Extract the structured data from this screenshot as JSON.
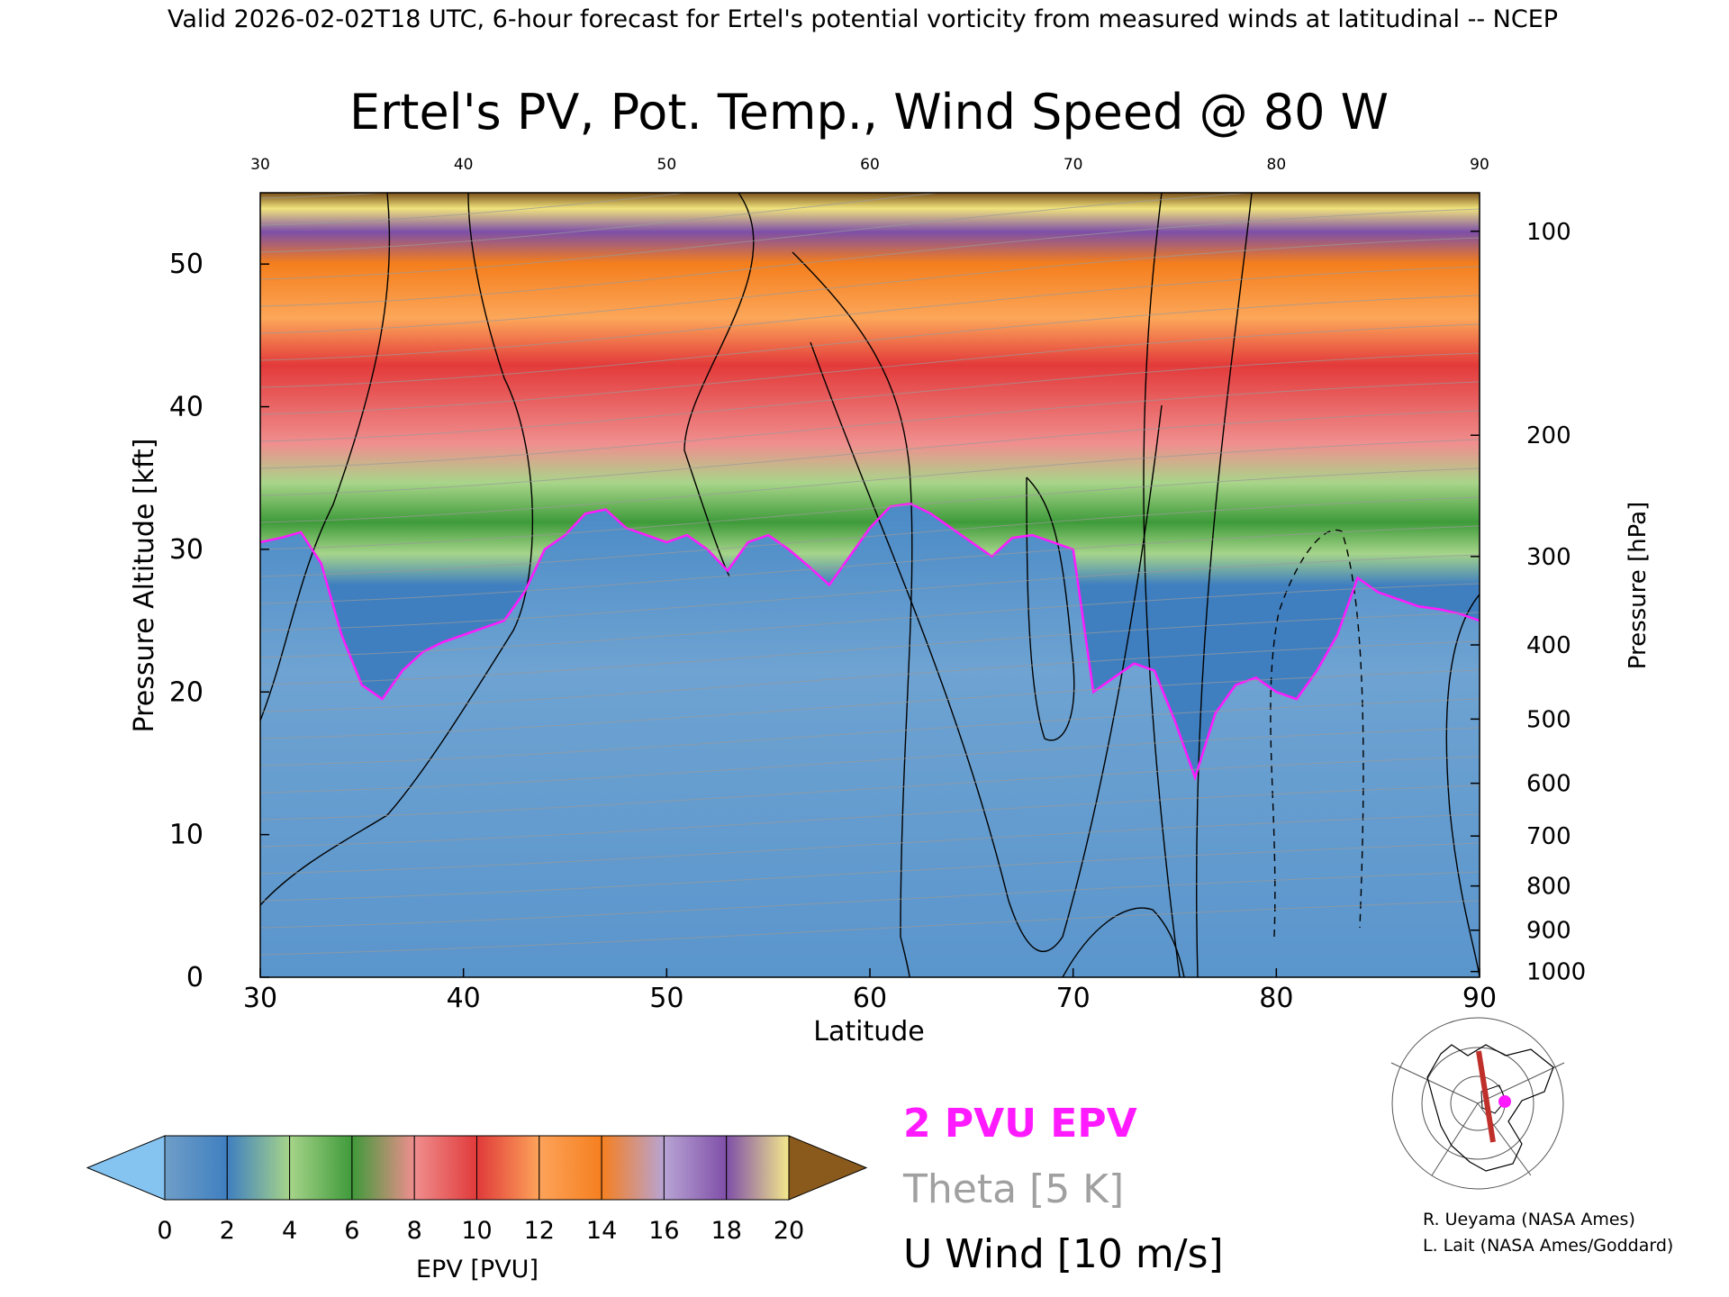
{
  "header": {
    "valid_line": "Valid 2026-02-02T18 UTC, 6-hour forecast for Ertel's potential vorticity from measured winds at latitudinal -- NCEP"
  },
  "chart_data": {
    "type": "heatmap",
    "title": "Ertel's PV, Pot. Temp., Wind Speed @ 80 W",
    "xlabel": "Latitude",
    "ylabel_left": "Pressure Altitude [kft]",
    "ylabel_right": "Pressure [hPa]",
    "xlim": [
      30,
      90
    ],
    "ylim": [
      0,
      55
    ],
    "x_ticks": [
      "30",
      "40",
      "50",
      "60",
      "70",
      "80",
      "90"
    ],
    "x_ticks_top": [
      "30",
      "40",
      "50",
      "60",
      "70",
      "80",
      "90"
    ],
    "y_ticks": [
      "0",
      "10",
      "20",
      "30",
      "40",
      "50"
    ],
    "pressure_ticks": [
      {
        "label": "100",
        "alt": 52.3
      },
      {
        "label": "200",
        "alt": 38.0
      },
      {
        "label": "300",
        "alt": 29.5
      },
      {
        "label": "400",
        "alt": 23.3
      },
      {
        "label": "500",
        "alt": 18.1
      },
      {
        "label": "600",
        "alt": 13.6
      },
      {
        "label": "700",
        "alt": 9.9
      },
      {
        "label": "800",
        "alt": 6.4
      },
      {
        "label": "900",
        "alt": 3.3
      },
      {
        "label": "1000",
        "alt": 0.4
      }
    ],
    "two_pvu_boundary": {
      "lat": [
        30,
        31,
        32,
        33,
        34,
        35,
        36,
        37,
        38,
        39,
        40,
        41,
        42,
        43,
        44,
        45,
        46,
        47,
        48,
        49,
        50,
        51,
        52,
        53,
        54,
        55,
        56,
        57,
        58,
        59,
        60,
        61,
        62,
        63,
        64,
        65,
        66,
        67,
        68,
        69,
        70,
        71,
        72,
        73,
        74,
        75,
        76,
        77,
        78,
        79,
        80,
        81,
        82,
        83,
        84,
        85,
        86,
        87,
        88,
        89,
        90
      ],
      "alt_kft": [
        30.5,
        30.8,
        31.2,
        29.0,
        24.0,
        20.5,
        19.5,
        21.5,
        22.8,
        23.5,
        24.0,
        24.5,
        25.0,
        27.0,
        30.0,
        31.0,
        32.5,
        32.8,
        31.5,
        31.0,
        30.5,
        31.0,
        30.0,
        28.5,
        30.5,
        31.0,
        30.0,
        28.8,
        27.5,
        29.5,
        31.5,
        33.0,
        33.2,
        32.5,
        31.5,
        30.5,
        29.5,
        30.8,
        31.0,
        30.5,
        30.0,
        20.0,
        21.0,
        22.0,
        21.5,
        18.0,
        14.0,
        18.5,
        20.5,
        21.0,
        20.0,
        19.5,
        21.5,
        24.0,
        28.0,
        27.0,
        26.5,
        26.0,
        25.8,
        25.5,
        25.0
      ]
    },
    "colorbar": {
      "label": "EPV [PVU]",
      "ticks": [
        "0",
        "2",
        "4",
        "6",
        "8",
        "10",
        "12",
        "14",
        "16",
        "18",
        "20"
      ],
      "colors": [
        "#6f9ec8",
        "#3f7fc0",
        "#a6d48a",
        "#3f9a3a",
        "#f08e8e",
        "#e03a3a",
        "#fda35a",
        "#f57f1f",
        "#b8a4d4",
        "#7f4fa8",
        "#f3e88c",
        "#8a5a1c"
      ],
      "low_color": "#85c3f0",
      "high_color": "#8a5a1c"
    },
    "legend": [
      {
        "label": "2 PVU EPV",
        "color": "#ff1aff"
      },
      {
        "label": "Theta [5 K]",
        "color": "#a0a0a0"
      },
      {
        "label": "U Wind [10 m/s]",
        "color": "#000000"
      }
    ]
  },
  "credits": {
    "line1": "R. Ueyama (NASA Ames)",
    "line2": "L. Lait (NASA Ames/Goddard)"
  }
}
